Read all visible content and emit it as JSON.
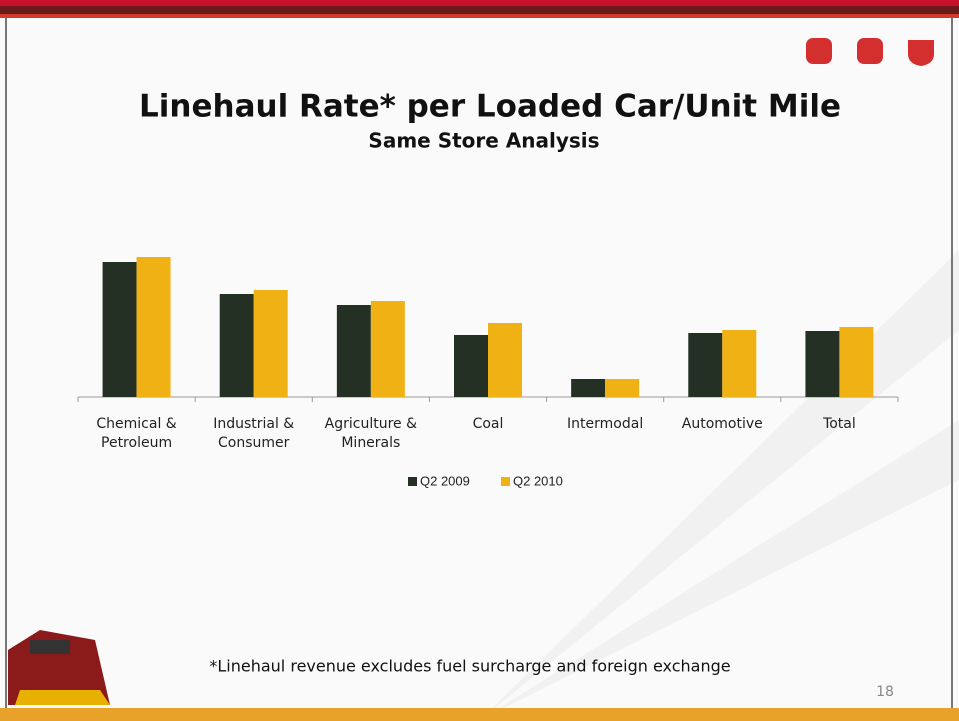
{
  "header": {
    "title": "Linehaul Rate* per Loaded Car/Unit Mile",
    "subtitle": "Same Store Analysis"
  },
  "chart_data": {
    "type": "bar",
    "categories": [
      "Chemical & Petroleum",
      "Industrial & Consumer",
      "Agriculture & Minerals",
      "Coal",
      "Intermodal",
      "Automotive",
      "Total"
    ],
    "series": [
      {
        "name": "Q2 2009",
        "color": "#243024",
        "values": [
          135,
          103,
          92,
          62,
          18,
          64,
          66
        ]
      },
      {
        "name": "Q2 2010",
        "color": "#f0b114",
        "values": [
          140,
          107,
          96,
          74,
          18,
          67,
          70
        ]
      }
    ]
  },
  "footnote": "*Linehaul revenue excludes fuel surcharge and foreign exchange",
  "page_number": "18"
}
